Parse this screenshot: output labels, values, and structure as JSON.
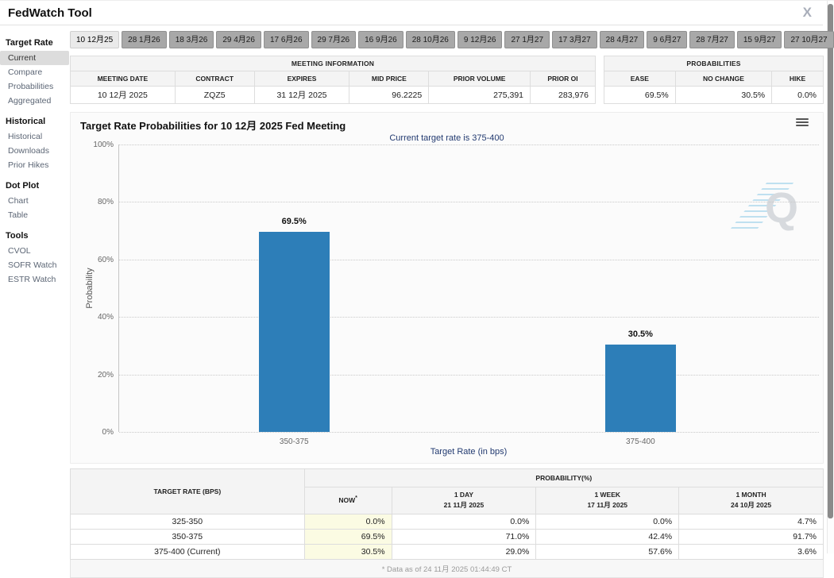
{
  "app": {
    "title": "FedWatch Tool",
    "close": "X"
  },
  "colors": {
    "bar_blue": "#2d7eb8",
    "navy_text": "#223a70",
    "now_highlight": "#fbfbe3"
  },
  "sidebar": {
    "sections": [
      {
        "title": "Target Rate",
        "items": [
          {
            "label": "Current",
            "active": true
          },
          {
            "label": "Compare",
            "active": false
          },
          {
            "label": "Probabilities",
            "active": false
          },
          {
            "label": "Aggregated",
            "active": false
          }
        ]
      },
      {
        "title": "Historical",
        "items": [
          {
            "label": "Historical",
            "active": false
          },
          {
            "label": "Downloads",
            "active": false
          },
          {
            "label": "Prior Hikes",
            "active": false
          }
        ]
      },
      {
        "title": "Dot Plot",
        "items": [
          {
            "label": "Chart",
            "active": false
          },
          {
            "label": "Table",
            "active": false
          }
        ]
      },
      {
        "title": "Tools",
        "items": [
          {
            "label": "CVOL",
            "active": false
          },
          {
            "label": "SOFR Watch",
            "active": false
          },
          {
            "label": "ESTR Watch",
            "active": false
          }
        ]
      }
    ]
  },
  "tabs": {
    "selected": "10 12月25",
    "items": [
      "10 12月25",
      "28 1月26",
      "18 3月26",
      "29 4月26",
      "17 6月26",
      "29 7月26",
      "16 9月26",
      "28 10月26",
      "9 12月26",
      "27 1月27",
      "17 3月27",
      "28 4月27",
      "9 6月27",
      "28 7月27",
      "15 9月27",
      "27 10月27"
    ]
  },
  "meeting_info": {
    "title": "MEETING INFORMATION",
    "columns": [
      "MEETING DATE",
      "CONTRACT",
      "EXPIRES",
      "MID PRICE",
      "PRIOR VOLUME",
      "PRIOR OI"
    ],
    "values": [
      "10 12月 2025",
      "ZQZ5",
      "31 12月 2025",
      "96.2225",
      "275,391",
      "283,976"
    ],
    "align": [
      "center",
      "center",
      "center",
      "right",
      "right",
      "right"
    ]
  },
  "probabilities": {
    "title": "PROBABILITIES",
    "columns": [
      "EASE",
      "NO CHANGE",
      "HIKE"
    ],
    "values": [
      "69.5%",
      "30.5%",
      "0.0%"
    ],
    "align": [
      "right",
      "right",
      "right"
    ]
  },
  "chart_data": {
    "type": "bar",
    "title": "Target Rate Probabilities for 10 12月 2025 Fed Meeting",
    "subtitle": "Current target rate is 375-400",
    "categories": [
      "350-375",
      "375-400"
    ],
    "values": [
      69.5,
      30.5
    ],
    "value_labels": [
      "69.5%",
      "30.5%"
    ],
    "xlabel": "Target Rate (in bps)",
    "ylabel": "Probability",
    "ylim": [
      0,
      100
    ],
    "yticks": [
      "0%",
      "20%",
      "40%",
      "60%",
      "80%",
      "100%"
    ],
    "grid": "horizontal dotted",
    "legend": "none",
    "bar_color": "#2d7eb8",
    "watermark": "Q"
  },
  "bottom_table": {
    "rate_header": "TARGET RATE (BPS)",
    "prob_header": "PROBABILITY(%)",
    "columns": [
      {
        "line1": "NOW",
        "line2": "",
        "asterisk": "*"
      },
      {
        "line1": "1 DAY",
        "line2": "21 11月 2025"
      },
      {
        "line1": "1 WEEK",
        "line2": "17 11月 2025"
      },
      {
        "line1": "1 MONTH",
        "line2": "24 10月 2025"
      }
    ],
    "rows": [
      {
        "rate": "325-350",
        "now": "0.0%",
        "day": "0.0%",
        "week": "0.0%",
        "month": "4.7%"
      },
      {
        "rate": "350-375",
        "now": "69.5%",
        "day": "71.0%",
        "week": "42.4%",
        "month": "91.7%"
      },
      {
        "rate": "375-400 (Current)",
        "now": "30.5%",
        "day": "29.0%",
        "week": "57.6%",
        "month": "3.6%"
      }
    ],
    "footnote": "* Data as of 24 11月 2025 01:44:49 CT"
  }
}
